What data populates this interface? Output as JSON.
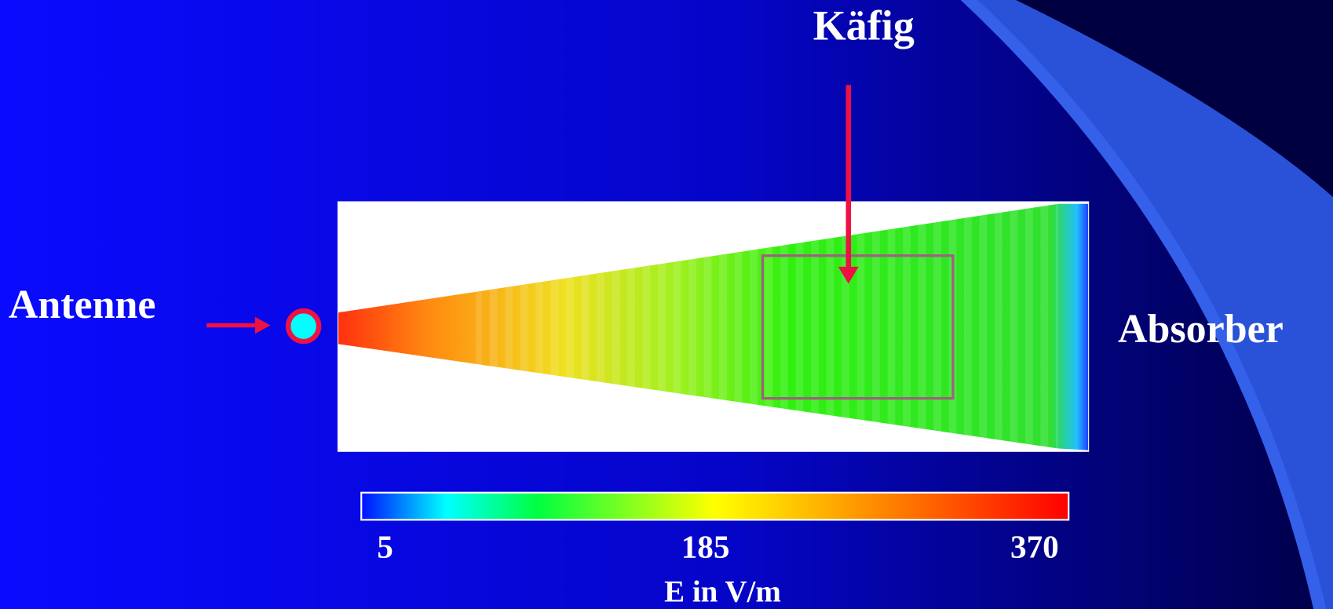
{
  "labels": {
    "cage": "Käfig",
    "antenna": "Antenne",
    "absorber": "Absorber"
  },
  "colorbar": {
    "ticks": [
      5,
      185,
      370
    ],
    "label": "E in V/m"
  }
}
